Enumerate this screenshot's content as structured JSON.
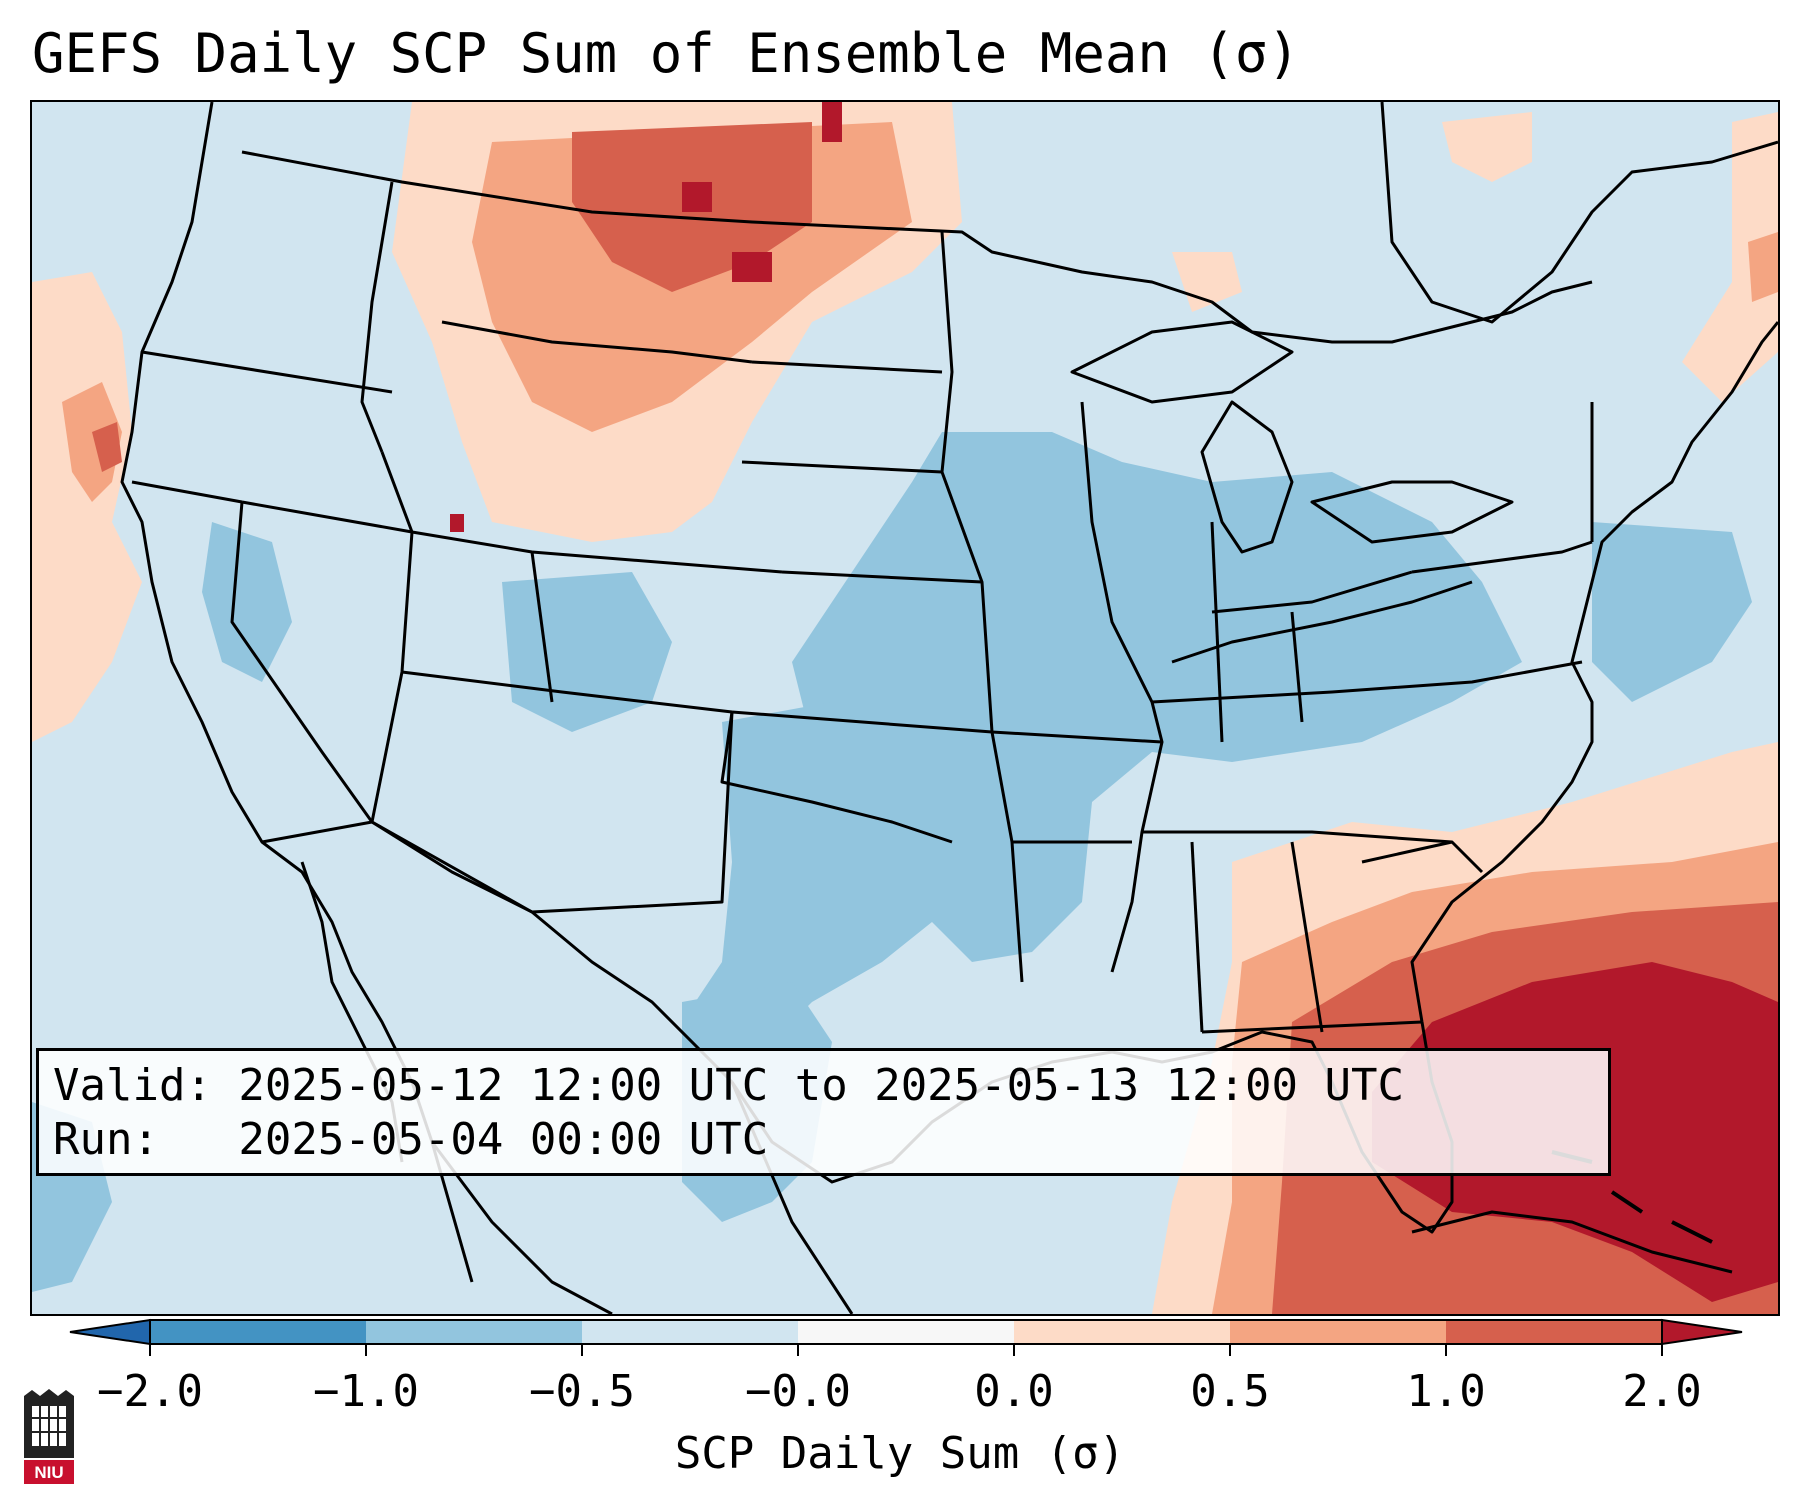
{
  "title": "GEFS Daily SCP Sum of Ensemble Mean (σ)",
  "info": {
    "valid_line": "Valid: 2025-05-12 12:00 UTC to 2025-05-13 12:00 UTC",
    "run_line": "Run:   2025-05-04 00:00 UTC"
  },
  "colorbar": {
    "label": "SCP Daily Sum (σ)",
    "tick_labels": [
      "−2.0",
      "−1.0",
      "−0.5",
      "−0.0",
      "0.0",
      "0.5",
      "1.0",
      "2.0"
    ],
    "bins": [
      {
        "range": "< −2.0",
        "color": "#2166ac"
      },
      {
        "range": "−2.0 to −1.0",
        "color": "#4393c3"
      },
      {
        "range": "−1.0 to −0.5",
        "color": "#92c5de"
      },
      {
        "range": "−0.5 to −0.0",
        "color": "#d1e5f0"
      },
      {
        "range": "−0.0 to 0.0",
        "color": "#f7f7f7"
      },
      {
        "range": "0.0 to 0.5",
        "color": "#fddbc7"
      },
      {
        "range": "0.5 to 1.0",
        "color": "#f4a582"
      },
      {
        "range": "1.0 to 2.0",
        "color": "#d6604d"
      },
      {
        "range": "> 2.0",
        "color": "#b2182b"
      }
    ]
  },
  "logo": {
    "text": "NIU",
    "icon": "niu-logo-icon"
  }
}
